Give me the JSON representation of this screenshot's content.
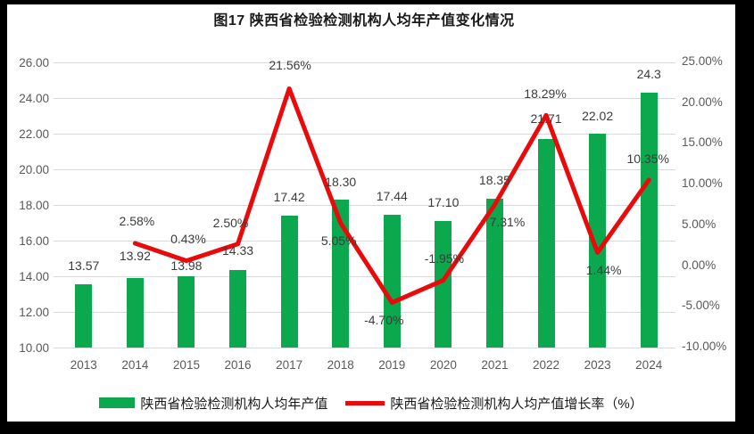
{
  "title": "图17 陕西省检验检测机构人均年产值变化情况",
  "colors": {
    "frame": "#000000",
    "background": "#ffffff",
    "bar": "#0ca84e",
    "line": "#e90b0b",
    "grid": "#d9d9d9",
    "axis_text": "#595959",
    "data_label_text": "#3b3b3b",
    "title_text": "#1a1a1a"
  },
  "chart_data": {
    "type": "combo-bar-line",
    "title": "图17 陕西省检验检测机构人均年产值变化情况",
    "categories": [
      "2013",
      "2014",
      "2015",
      "2016",
      "2017",
      "2018",
      "2019",
      "2020",
      "2021",
      "2022",
      "2023",
      "2024"
    ],
    "series": [
      {
        "name": "陕西省检验检测机构人均年产值",
        "type": "bar",
        "axis": "left",
        "values": [
          13.57,
          13.92,
          13.98,
          14.33,
          17.42,
          18.3,
          17.44,
          17.1,
          18.35,
          21.71,
          22.02,
          24.3
        ],
        "labels": [
          "13.57",
          "13.92",
          "13.98",
          "14.33",
          "17.42",
          "18.30",
          "17.44",
          "17.10",
          "18.35",
          "21.71",
          "22.02",
          "24.3"
        ]
      },
      {
        "name": "陕西省检验检测机构人均产值增长率（%）",
        "type": "line",
        "axis": "right",
        "values": [
          null,
          2.58,
          0.43,
          2.5,
          21.56,
          5.05,
          -4.7,
          -1.95,
          7.31,
          18.29,
          1.44,
          10.35
        ],
        "labels": [
          "",
          "2.58%",
          "0.43%",
          "2.50%",
          "21.56%",
          "5.05%",
          "-4.70%",
          "-1.95%",
          "7.31%",
          "18.29%",
          "1.44%",
          "10.35%"
        ]
      }
    ],
    "left_axis": {
      "min": 10,
      "max": 26,
      "ticks": [
        "26.00",
        "24.00",
        "22.00",
        "20.00",
        "18.00",
        "16.00",
        "14.00",
        "12.00",
        "10.00"
      ]
    },
    "right_axis": {
      "min": -10,
      "max": 25,
      "ticks": [
        "25.00%",
        "20.00%",
        "15.00%",
        "10.00%",
        "5.00%",
        "0.00%",
        "-5.00%",
        "-10.00%"
      ]
    },
    "grid": true,
    "legend_position": "bottom"
  }
}
